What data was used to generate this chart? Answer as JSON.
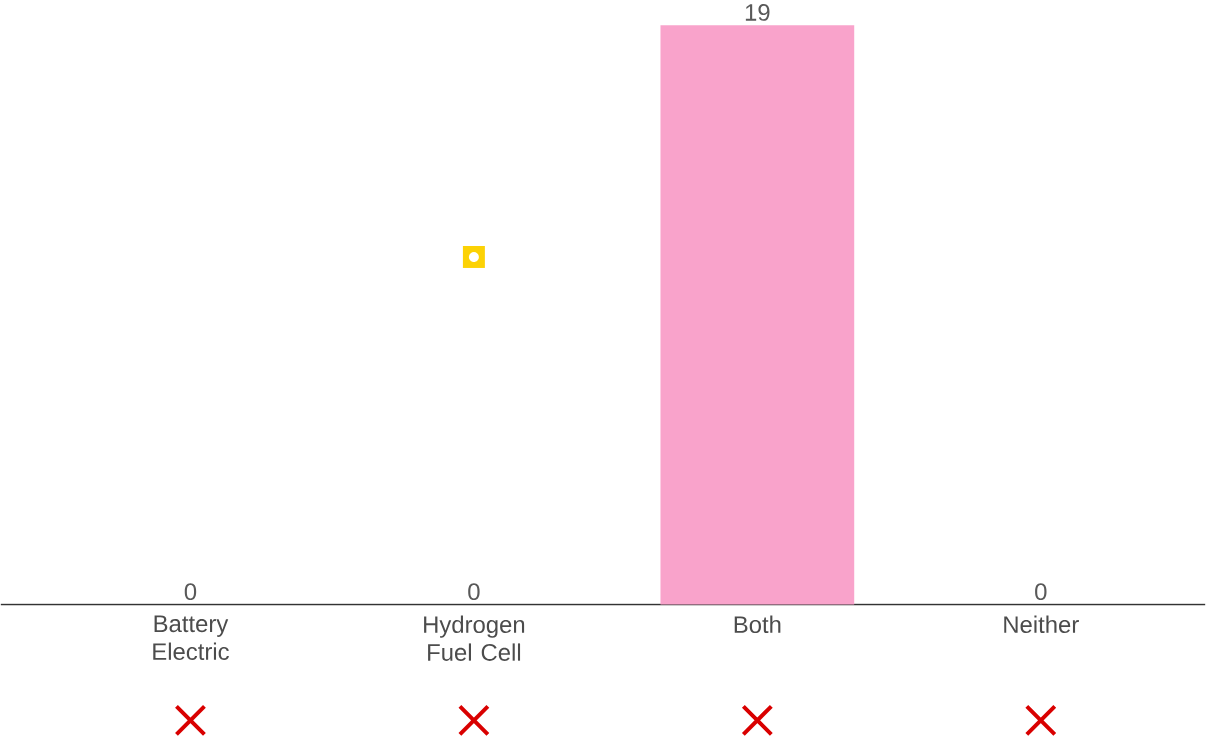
{
  "chart_data": {
    "type": "bar",
    "categories": [
      "Battery Electric",
      "Hydrogen Fuel Cell",
      "Both",
      "Neither"
    ],
    "values": [
      0,
      0,
      19,
      0
    ],
    "color": "#f9a3cb",
    "data_labels": true,
    "tick_labels": "x"
  }
}
